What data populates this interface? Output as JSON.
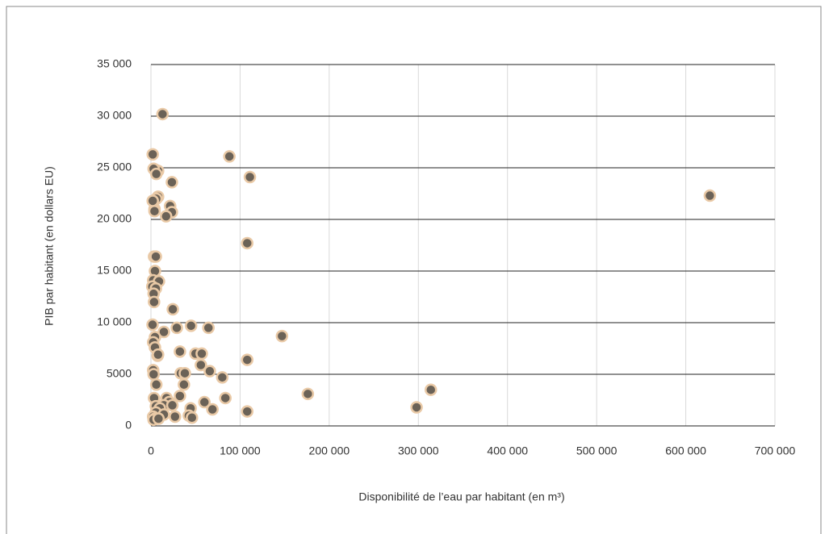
{
  "chart_data": {
    "type": "scatter",
    "y_label": "PIB par habitant (en dollars EU)",
    "x_label": "Disponibilité de l’eau par habitant (en m³)",
    "x": [
      13000,
      2000,
      88000,
      111000,
      5000,
      8000,
      3000,
      6000,
      23500,
      627000,
      8000,
      6000,
      21500,
      23500,
      4000,
      2000,
      4000,
      17000,
      108000,
      3500,
      5500,
      4500,
      2500,
      9000,
      1500,
      5500,
      3000,
      3500,
      24500,
      1800,
      45000,
      64500,
      29000,
      14500,
      147000,
      4500,
      2500,
      4500,
      7500,
      8000,
      32500,
      50000,
      57000,
      108000,
      56000,
      66000,
      2500,
      3000,
      80000,
      33500,
      38000,
      37000,
      6000,
      314000,
      176000,
      32500,
      3500,
      17500,
      83500,
      60000,
      20500,
      14500,
      5500,
      24000,
      10000,
      298000,
      69000,
      44500,
      108000,
      5500,
      14500,
      2500,
      4500,
      42500,
      46000,
      27000,
      3000,
      8500
    ],
    "values": [
      30200,
      26300,
      26100,
      24100,
      24800,
      24700,
      24900,
      24400,
      23600,
      22300,
      22200,
      22000,
      21300,
      20700,
      21000,
      21800,
      20800,
      20300,
      17700,
      16400,
      16400,
      15000,
      14100,
      14000,
      13500,
      13300,
      12800,
      12000,
      11300,
      9800,
      9700,
      9500,
      9500,
      9100,
      8700,
      8600,
      8100,
      7600,
      6800,
      6900,
      7200,
      7000,
      7000,
      6400,
      5900,
      5300,
      5400,
      5000,
      4700,
      5100,
      5100,
      4000,
      4000,
      3500,
      3100,
      2900,
      2700,
      2700,
      2700,
      2300,
      2300,
      2000,
      1900,
      2000,
      1700,
      1800,
      1600,
      1700,
      1400,
      1300,
      1100,
      900,
      700,
      1000,
      800,
      900,
      600,
      700
    ],
    "color": "#6b6257",
    "edge_color": "#e9c9a6",
    "xlim": [
      0,
      700000
    ],
    "xticks": [
      0,
      {
        "value": 100000,
        "label": "100 000"
      },
      {
        "value": 200000,
        "label": "200 000"
      },
      {
        "value": 300000,
        "label": "300 000"
      },
      {
        "value": 400000,
        "label": "400 000"
      },
      {
        "value": 500000,
        "label": "500 000"
      },
      {
        "value": 600000,
        "label": "600 000"
      },
      {
        "value": 700000,
        "label": "700 000"
      }
    ],
    "ylim": [
      0,
      35000
    ],
    "yticks": [
      0,
      {
        "value": 5000,
        "label": "5000"
      },
      {
        "value": 10000,
        "label": "10 000"
      },
      {
        "value": 15000,
        "label": "15 000"
      },
      {
        "value": 20000,
        "label": "20 000"
      },
      {
        "value": 25000,
        "label": "25 000"
      },
      {
        "value": 30000,
        "label": "30 000"
      },
      {
        "value": 35000,
        "label": "35 000"
      }
    ],
    "grid": true
  }
}
